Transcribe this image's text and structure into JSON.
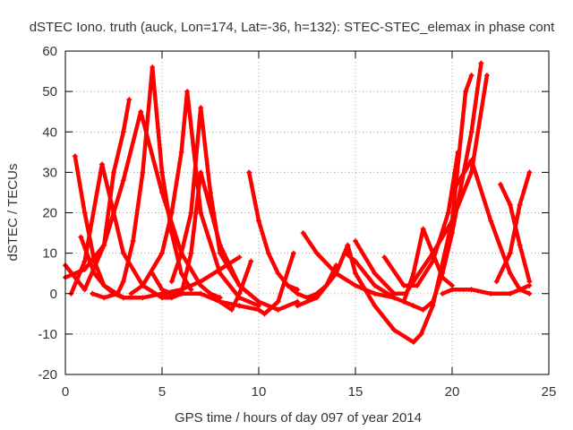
{
  "chart_data": {
    "type": "scatter",
    "title": "dSTEC Iono. truth (auck, Lon=174, Lat=-36, h=132): STEC-STEC_elemax in phase cont",
    "xlabel": "GPS time / hours of day 097 of year 2014",
    "ylabel": "dSTEC  / TECUs",
    "xlim": [
      0,
      25
    ],
    "ylim": [
      -20,
      60
    ],
    "xticks": [
      0,
      5,
      10,
      15,
      20,
      25
    ],
    "yticks": [
      -20,
      -10,
      0,
      10,
      20,
      30,
      40,
      50,
      60
    ],
    "grid": true,
    "legend": "none",
    "marker": "+",
    "color": "#ff0000",
    "series": [
      {
        "x": [
          0.0,
          1.0,
          2.0,
          3.0,
          3.9,
          5.0,
          6.0,
          7.0,
          7.5,
          8.0
        ],
        "y": [
          4,
          6,
          12,
          28,
          45,
          25,
          10,
          2,
          0,
          -1
        ]
      },
      {
        "x": [
          0.5,
          1.0,
          1.5,
          2.0,
          2.5,
          3.0
        ],
        "y": [
          34,
          20,
          8,
          2,
          0,
          -1
        ]
      },
      {
        "x": [
          0.0,
          1.0,
          2.0,
          2.5,
          3.0,
          3.3
        ],
        "y": [
          7,
          1,
          12,
          30,
          40,
          48
        ]
      },
      {
        "x": [
          0.3,
          1.0,
          1.9,
          2.5,
          3.0,
          4.0,
          5.0,
          5.5,
          6.0
        ],
        "y": [
          0,
          8,
          32,
          20,
          10,
          2,
          -1,
          -1,
          0
        ]
      },
      {
        "x": [
          1.4,
          2.0,
          2.7,
          3.0,
          3.5,
          4.0,
          4.5,
          5.0,
          5.5,
          6.0,
          6.5
        ],
        "y": [
          0,
          -1,
          0,
          3,
          13,
          30,
          56,
          30,
          15,
          5,
          1
        ]
      },
      {
        "x": [
          0.8,
          1.5,
          2.0,
          3.0,
          4.0,
          5.0,
          6.0,
          7.0,
          8.0,
          9.0
        ],
        "y": [
          14,
          5,
          2,
          -1,
          -1,
          0,
          1,
          3,
          6,
          9
        ]
      },
      {
        "x": [
          3.4,
          4.0,
          5.0,
          5.5,
          6.0,
          6.3,
          7.0,
          8.0,
          9.0,
          10.0
        ],
        "y": [
          0,
          2,
          10,
          20,
          35,
          50,
          20,
          5,
          -1,
          -3
        ]
      },
      {
        "x": [
          4.5,
          5.0,
          5.5,
          6.0,
          6.5,
          7.0,
          8.0,
          9.0,
          9.5
        ],
        "y": [
          5,
          1,
          0,
          0,
          10,
          30,
          12,
          2,
          0
        ]
      },
      {
        "x": [
          5.5,
          6.0,
          6.5,
          7.0,
          7.5,
          8.0,
          9.0,
          10.0,
          11.0,
          12.0
        ],
        "y": [
          3,
          10,
          20,
          46,
          25,
          10,
          2,
          -2,
          -4,
          -2
        ]
      },
      {
        "x": [
          5.0,
          6.0,
          7.0,
          8.0,
          8.6,
          9.0,
          9.6
        ],
        "y": [
          -1,
          0,
          0,
          -2,
          -4,
          0,
          8
        ]
      },
      {
        "x": [
          9.5,
          10.0,
          10.5,
          11.0,
          11.5,
          12.0
        ],
        "y": [
          30,
          18,
          10,
          5,
          2,
          1
        ]
      },
      {
        "x": [
          8.0,
          9.0,
          10.0,
          10.3,
          11.0,
          11.8
        ],
        "y": [
          -2,
          -3,
          -4,
          -5,
          -2,
          10
        ]
      },
      {
        "x": [
          11.5,
          12.0,
          12.5,
          13.0,
          13.5,
          14.0
        ],
        "y": [
          2,
          0,
          -1,
          0,
          2,
          7
        ]
      },
      {
        "x": [
          12.3,
          13.0,
          14.0,
          15.0,
          16.0,
          17.0
        ],
        "y": [
          15,
          10,
          5,
          2,
          0,
          -1
        ]
      },
      {
        "x": [
          12.0,
          13.0,
          14.0,
          14.6,
          15.0,
          16.0,
          17.0,
          18.0,
          18.4,
          19.0,
          20.0,
          20.7,
          21.0
        ],
        "y": [
          -3,
          -1,
          5,
          12,
          5,
          -3,
          -9,
          -12,
          -10,
          -3,
          18,
          50,
          54
        ]
      },
      {
        "x": [
          14.5,
          15.0,
          16.0,
          17.0,
          18.0,
          18.5,
          19.0,
          19.5,
          20.0,
          21.0,
          21.5
        ],
        "y": [
          10,
          8,
          2,
          -1,
          -3,
          -4,
          -2,
          5,
          15,
          40,
          57
        ]
      },
      {
        "x": [
          15.0,
          16.0,
          17.0,
          17.6,
          18.0,
          19.0,
          20.0,
          21.0,
          21.8
        ],
        "y": [
          13,
          5,
          0,
          0,
          3,
          10,
          18,
          30,
          54
        ]
      },
      {
        "x": [
          16.5,
          17.5,
          18.2,
          19.0,
          19.8,
          20.3
        ],
        "y": [
          9,
          2,
          2,
          8,
          20,
          35
        ]
      },
      {
        "x": [
          17.5,
          18.0,
          18.5,
          19.0,
          19.5,
          20.0
        ],
        "y": [
          -2,
          5,
          16,
          10,
          4,
          2
        ]
      },
      {
        "x": [
          19.5,
          20.0,
          21.0,
          22.0,
          23.0,
          24.0
        ],
        "y": [
          0,
          1,
          1,
          0,
          0,
          2
        ]
      },
      {
        "x": [
          20.0,
          21.0,
          22.0,
          23.0,
          23.5,
          24.0
        ],
        "y": [
          25,
          33,
          18,
          5,
          1,
          0
        ]
      },
      {
        "x": [
          22.5,
          23.0,
          23.5,
          24.0
        ],
        "y": [
          27,
          22,
          12,
          3
        ]
      },
      {
        "x": [
          22.3,
          23.0,
          23.5,
          24.0
        ],
        "y": [
          3,
          10,
          22,
          30
        ]
      }
    ]
  }
}
